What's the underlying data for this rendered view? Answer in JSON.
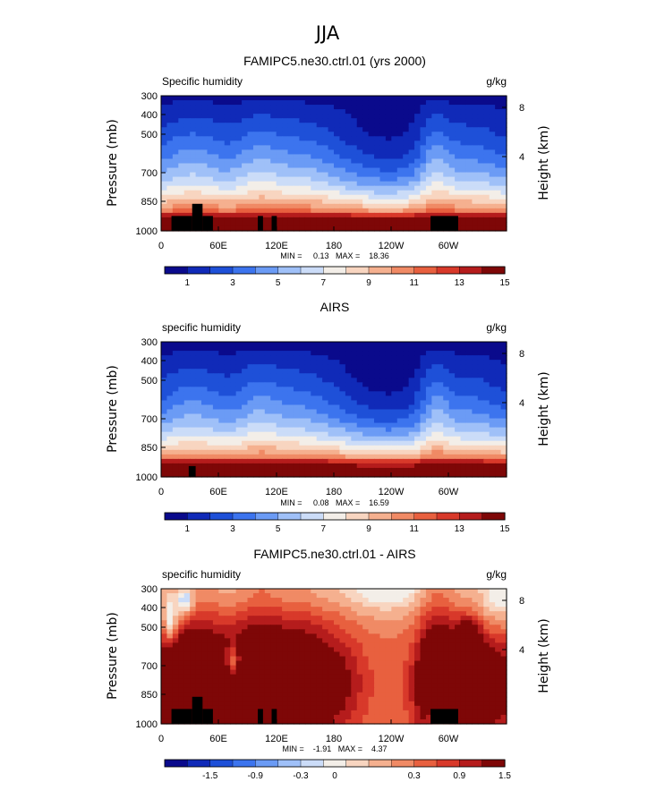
{
  "page_title": "JJA",
  "chart_data": [
    {
      "type": "heatmap",
      "title": "FAMIPC5.ne30.ctrl.01 (yrs 2000)",
      "subtitle_left": "Specific humidity",
      "units": "g/kg",
      "ylabel": "Pressure (mb)",
      "ylabel_right": "Height (km)",
      "y_ticks": [
        "300",
        "400",
        "500",
        "700",
        "850",
        "1000"
      ],
      "y_ticks_right": [
        "8",
        "4"
      ],
      "x_ticks": [
        "0",
        "60E",
        "120E",
        "180",
        "120W",
        "60W"
      ],
      "stats": "MIN =     0.13   MAX =    18.36",
      "colorbar_labels": [
        "1",
        "3",
        "5",
        "7",
        "9",
        "11",
        "13",
        "15"
      ],
      "colorbar_colors": [
        "#0a0a8c",
        "#102ab8",
        "#1e50d8",
        "#3c74ee",
        "#6b9bf5",
        "#9fc0f8",
        "#cbdcf8",
        "#f3eee8",
        "#f8d5c0",
        "#f5b08f",
        "#f08a65",
        "#e8603f",
        "#d8392a",
        "#b51c1c",
        "#7e0707"
      ],
      "levels": [
        -15,
        1,
        2,
        3,
        4,
        5,
        6,
        7,
        8,
        9,
        10,
        11,
        12,
        13,
        14,
        15,
        99
      ],
      "mode": "model"
    },
    {
      "type": "heatmap",
      "title": "AIRS",
      "subtitle_left": "specific humidity",
      "units": "g/kg",
      "ylabel": "Pressure (mb)",
      "ylabel_right": "Height (km)",
      "y_ticks": [
        "300",
        "400",
        "500",
        "700",
        "850",
        "1000"
      ],
      "y_ticks_right": [
        "8",
        "4"
      ],
      "x_ticks": [
        "0",
        "60E",
        "120E",
        "180",
        "120W",
        "60W"
      ],
      "stats": "MIN =     0.08   MAX =    16.59",
      "colorbar_labels": [
        "1",
        "3",
        "5",
        "7",
        "9",
        "11",
        "13",
        "15"
      ],
      "colorbar_colors": [
        "#0a0a8c",
        "#102ab8",
        "#1e50d8",
        "#3c74ee",
        "#6b9bf5",
        "#9fc0f8",
        "#cbdcf8",
        "#f3eee8",
        "#f8d5c0",
        "#f5b08f",
        "#f08a65",
        "#e8603f",
        "#d8392a",
        "#b51c1c",
        "#7e0707"
      ],
      "levels": [
        -15,
        1,
        2,
        3,
        4,
        5,
        6,
        7,
        8,
        9,
        10,
        11,
        12,
        13,
        14,
        15,
        99
      ],
      "mode": "obs"
    },
    {
      "type": "heatmap",
      "title": "FAMIPC5.ne30.ctrl.01 - AIRS",
      "subtitle_left": "specific humidity",
      "units": "g/kg",
      "ylabel": "Pressure (mb)",
      "ylabel_right": "Height (km)",
      "y_ticks": [
        "300",
        "400",
        "500",
        "700",
        "850",
        "1000"
      ],
      "y_ticks_right": [
        "8",
        "4"
      ],
      "x_ticks": [
        "0",
        "60E",
        "120E",
        "180",
        "120W",
        "60W"
      ],
      "stats": "MIN =    -1.91   MAX =    4.37",
      "colorbar_labels": [
        "-1.5",
        "-0.9",
        "-0.3",
        "0",
        "0.3",
        "0.9",
        "1.5"
      ],
      "colorbar_colors": [
        "#0a0a8c",
        "#102ab8",
        "#1e50d8",
        "#3c74ee",
        "#6b9bf5",
        "#9fc0f8",
        "#cbdcf8",
        "#f3eee8",
        "#f8d5c0",
        "#f5b08f",
        "#f08a65",
        "#e8603f",
        "#d8392a",
        "#b51c1c",
        "#7e0707"
      ],
      "levels": [
        -99,
        -1.8,
        -1.5,
        -1.2,
        -0.9,
        -0.6,
        -0.3,
        -0.1,
        0.1,
        0.3,
        0.6,
        0.9,
        1.2,
        1.5,
        1.8,
        99
      ],
      "mode": "diff"
    }
  ]
}
